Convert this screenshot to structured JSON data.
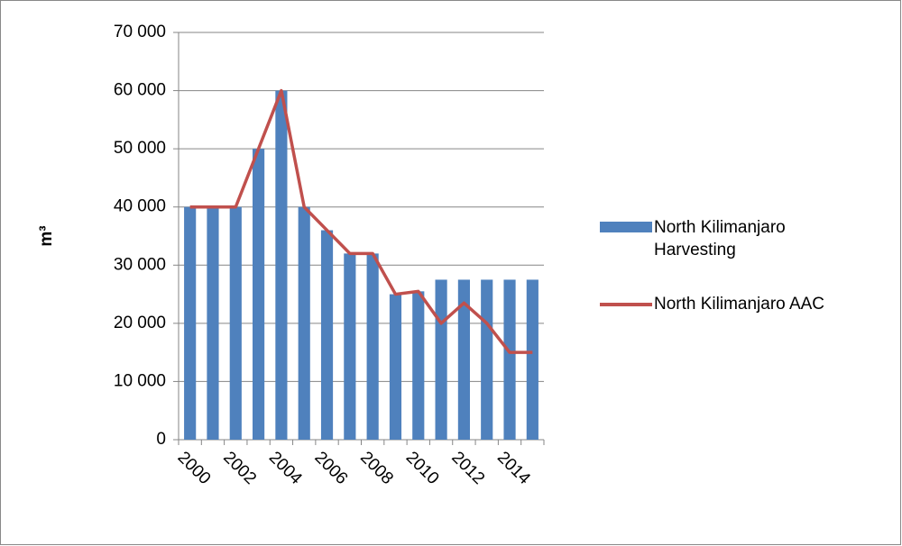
{
  "chart_data": {
    "type": "bar+line",
    "y_label": "m³",
    "categories": [
      "2000",
      null,
      "2002",
      null,
      "2004",
      null,
      "2006",
      null,
      "2008",
      null,
      "2010",
      null,
      "2012",
      null,
      "2014",
      null
    ],
    "series": [
      {
        "name": "North Kilimanjaro Harvesting",
        "type": "bar",
        "color": "#4f81bd",
        "values": [
          40000,
          40000,
          40000,
          50000,
          60000,
          40000,
          36000,
          32000,
          32000,
          25000,
          25500,
          27500,
          27500,
          27500,
          27500,
          27500
        ]
      },
      {
        "name": "North Kilimanjaro AAC",
        "type": "line",
        "color": "#c0504d",
        "values": [
          40000,
          40000,
          40000,
          50000,
          60000,
          40000,
          36000,
          32000,
          32000,
          25000,
          25500,
          20000,
          23500,
          20000,
          15000,
          15000
        ]
      }
    ],
    "ylim": [
      0,
      70000
    ],
    "yticks": [
      {
        "value": 0,
        "label": "0"
      },
      {
        "value": 10000,
        "label": "10 000"
      },
      {
        "value": 20000,
        "label": "20 000"
      },
      {
        "value": 30000,
        "label": "30 000"
      },
      {
        "value": 40000,
        "label": "40 000"
      },
      {
        "value": 50000,
        "label": "50 000"
      },
      {
        "value": 60000,
        "label": "60 000"
      },
      {
        "value": 70000,
        "label": "70 000"
      }
    ],
    "grid": true,
    "legend": "right"
  }
}
